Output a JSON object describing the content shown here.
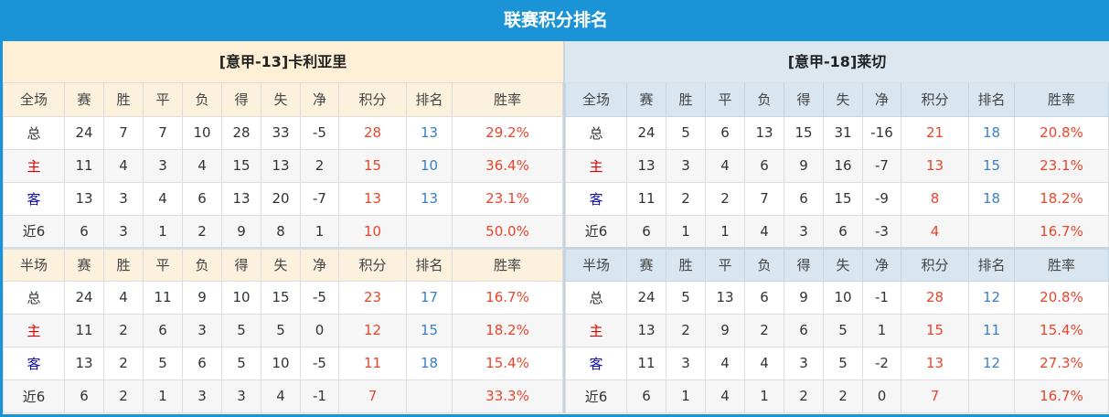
{
  "title": "联赛积分排名",
  "colors": {
    "header": "#1a94d6",
    "points": "#e8452c",
    "rank": "#3b7fc4",
    "home": "#e00000",
    "away": "#1010b0"
  },
  "columns": [
    "赛",
    "胜",
    "平",
    "负",
    "得",
    "失",
    "净",
    "积分",
    "排名",
    "胜率"
  ],
  "teams": [
    {
      "name": "[意甲-13]卡利亚里",
      "full": {
        "label": "全场",
        "rows": [
          [
            "总",
            "24",
            "7",
            "7",
            "10",
            "28",
            "33",
            "-5",
            "28",
            "13",
            "29.2%"
          ],
          [
            "主",
            "11",
            "4",
            "3",
            "4",
            "15",
            "13",
            "2",
            "15",
            "10",
            "36.4%"
          ],
          [
            "客",
            "13",
            "3",
            "4",
            "6",
            "13",
            "20",
            "-7",
            "13",
            "13",
            "23.1%"
          ],
          [
            "近6",
            "6",
            "3",
            "1",
            "2",
            "9",
            "8",
            "1",
            "10",
            "",
            "50.0%"
          ]
        ]
      },
      "half": {
        "label": "半场",
        "rows": [
          [
            "总",
            "24",
            "4",
            "11",
            "9",
            "10",
            "15",
            "-5",
            "23",
            "17",
            "16.7%"
          ],
          [
            "主",
            "11",
            "2",
            "6",
            "3",
            "5",
            "5",
            "0",
            "12",
            "15",
            "18.2%"
          ],
          [
            "客",
            "13",
            "2",
            "5",
            "6",
            "5",
            "10",
            "-5",
            "11",
            "18",
            "15.4%"
          ],
          [
            "近6",
            "6",
            "2",
            "1",
            "3",
            "3",
            "4",
            "-1",
            "7",
            "",
            "33.3%"
          ]
        ]
      }
    },
    {
      "name": "[意甲-18]莱切",
      "full": {
        "label": "全场",
        "rows": [
          [
            "总",
            "24",
            "5",
            "6",
            "13",
            "15",
            "31",
            "-16",
            "21",
            "18",
            "20.8%"
          ],
          [
            "主",
            "13",
            "3",
            "4",
            "6",
            "9",
            "16",
            "-7",
            "13",
            "15",
            "23.1%"
          ],
          [
            "客",
            "11",
            "2",
            "2",
            "7",
            "6",
            "15",
            "-9",
            "8",
            "18",
            "18.2%"
          ],
          [
            "近6",
            "6",
            "1",
            "1",
            "4",
            "3",
            "6",
            "-3",
            "4",
            "",
            "16.7%"
          ]
        ]
      },
      "half": {
        "label": "半场",
        "rows": [
          [
            "总",
            "24",
            "5",
            "13",
            "6",
            "9",
            "10",
            "-1",
            "28",
            "12",
            "20.8%"
          ],
          [
            "主",
            "13",
            "2",
            "9",
            "2",
            "6",
            "5",
            "1",
            "15",
            "11",
            "15.4%"
          ],
          [
            "客",
            "11",
            "3",
            "4",
            "4",
            "3",
            "5",
            "-2",
            "13",
            "12",
            "27.3%"
          ],
          [
            "近6",
            "6",
            "1",
            "4",
            "1",
            "2",
            "2",
            "0",
            "7",
            "",
            "16.7%"
          ]
        ]
      }
    }
  ]
}
